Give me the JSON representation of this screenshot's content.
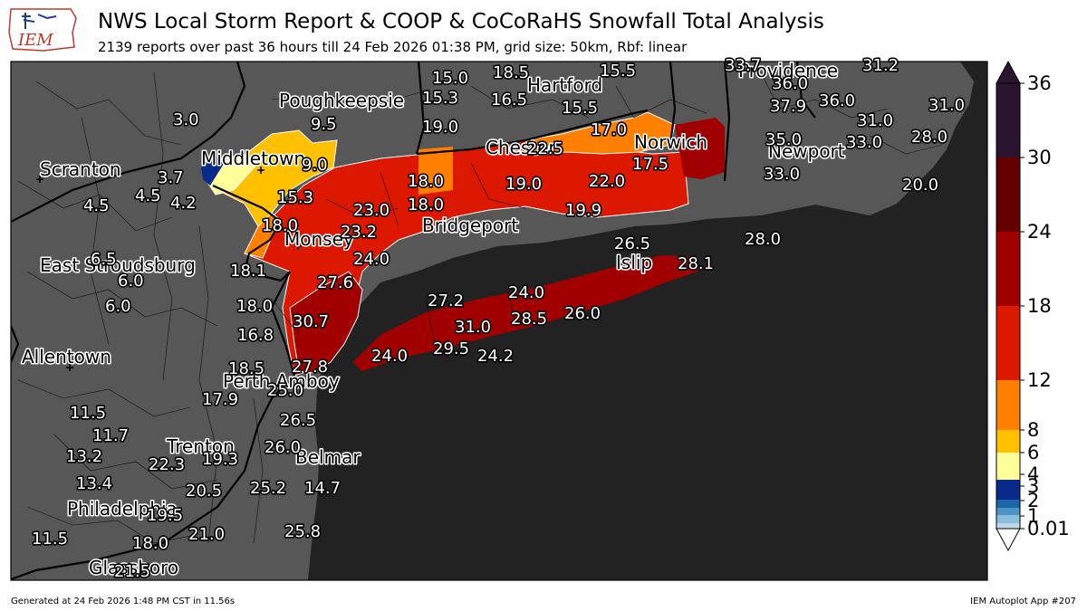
{
  "header": {
    "logo_text": "IEM",
    "title": "NWS Local Storm Report & COOP & CoCoRaHS Snowfall Total Analysis",
    "subtitle": "2139 reports over past 36 hours till 24 Feb 2026 01:38 PM, grid size: 50km, Rbf: linear"
  },
  "colors": {
    "land": "#575757",
    "water": "#222222",
    "bins": [
      "#ffffff",
      "#bcd7e8",
      "#89bedc",
      "#4e94c4",
      "#1b65a8",
      "#082a8a",
      "#ffff99",
      "#ffc000",
      "#ff8000",
      "#dd1800",
      "#a00000",
      "#640000",
      "#2a1430"
    ]
  },
  "colorbar": {
    "ticks": [
      "0.01",
      "1",
      "2",
      "3",
      "4",
      "6",
      "8",
      "12",
      "18",
      "24",
      "30",
      "36"
    ]
  },
  "cities": [
    {
      "name": "Poughkeepsie"
    },
    {
      "name": "Hartford"
    },
    {
      "name": "Providence"
    },
    {
      "name": "Scranton"
    },
    {
      "name": "Middletown"
    },
    {
      "name": "Norwich"
    },
    {
      "name": "Newport"
    },
    {
      "name": "Chester"
    },
    {
      "name": "Bridgeport"
    },
    {
      "name": "Monsey"
    },
    {
      "name": "East Stroudsburg"
    },
    {
      "name": "Allentown"
    },
    {
      "name": "Islip"
    },
    {
      "name": "Perth Amboy"
    },
    {
      "name": "Trenton"
    },
    {
      "name": "Belmar"
    },
    {
      "name": "Philadelphia"
    },
    {
      "name": "Glassboro"
    }
  ],
  "reports": [
    "15.0",
    "18.5",
    "15.5",
    "33.7",
    "31.2",
    "15.3",
    "16.5",
    "36.0",
    "3.0",
    "9.5",
    "19.0",
    "15.5",
    "37.9",
    "36.0",
    "31.0",
    "31.0",
    "17.0",
    "22.5",
    "35.0",
    "33.0",
    "28.0",
    "9.0",
    "17.5",
    "3.7",
    "18.0",
    "19.0",
    "22.0",
    "33.0",
    "4.5",
    "4.2",
    "15.3",
    "23.0",
    "18.0",
    "20.0",
    "4.5",
    "18.0",
    "23.2",
    "19.9",
    "26.5",
    "28.0",
    "6.5",
    "24.0",
    "28.1",
    "6.0",
    "18.1",
    "27.6",
    "24.0",
    "6.0",
    "18.0",
    "27.2",
    "28.5",
    "26.0",
    "30.7",
    "31.0",
    "16.8",
    "24.0",
    "29.5",
    "24.2",
    "18.5",
    "27.8",
    "25.0",
    "17.9",
    "11.5",
    "26.5",
    "11.7",
    "26.0",
    "13.2",
    "19.3",
    "22.3",
    "13.4",
    "20.5",
    "25.2",
    "14.7",
    "19.5",
    "21.0",
    "11.5",
    "18.0",
    "25.8",
    "21.5"
  ],
  "footer": {
    "generated": "Generated at 24 Feb 2026 1:48 PM CST in 11.56s",
    "app": "IEM Autoplot App #207"
  }
}
